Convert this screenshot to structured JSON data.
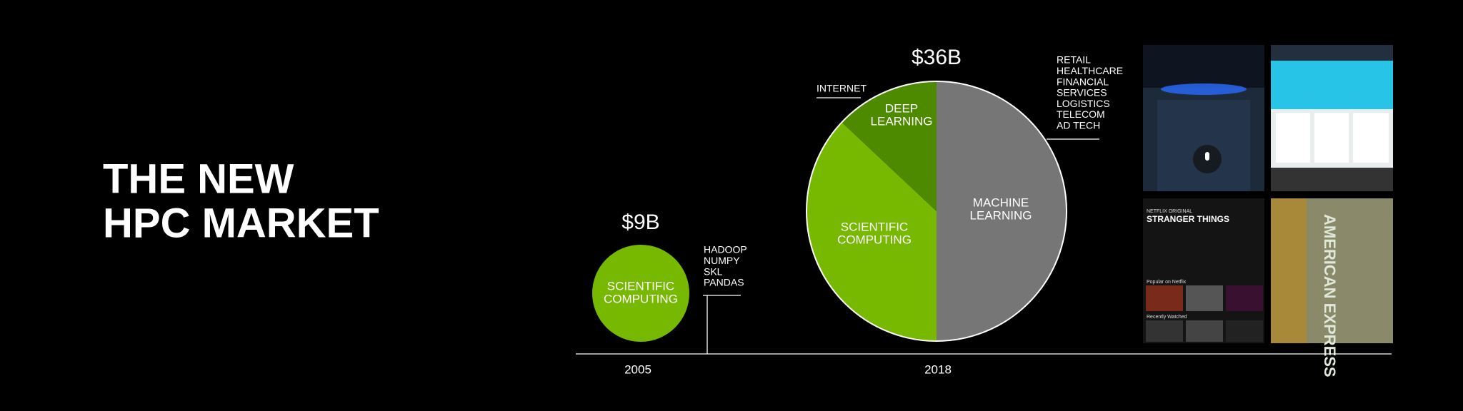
{
  "title_lines": [
    "THE NEW",
    "HPC MARKET"
  ],
  "chart_data": {
    "type": "market-pies",
    "markets": [
      {
        "year": "2005",
        "total": 9,
        "total_label": "$9B",
        "segments": [
          {
            "label_lines": [
              "SCIENTIFIC",
              "COMPUTING"
            ],
            "value": 100,
            "color": "#76b900"
          }
        ],
        "callouts": [
          {
            "lines": [
              "HADOOP",
              "NUMPY",
              "SKL",
              "PANDAS"
            ]
          }
        ]
      },
      {
        "year": "2018",
        "total": 36,
        "total_label": "$36B",
        "segments": [
          {
            "label_lines": [
              "MACHINE",
              "LEARNING"
            ],
            "value": 50,
            "color": "#767676"
          },
          {
            "label_lines": [
              "SCIENTIFIC",
              "COMPUTING"
            ],
            "value": 37,
            "color": "#76b900"
          },
          {
            "label_lines": [
              "DEEP",
              "LEARNING"
            ],
            "value": 13,
            "color": "#4e8a00"
          }
        ],
        "callouts": [
          {
            "lines": [
              "INTERNET"
            ]
          },
          {
            "lines": [
              "RETAIL",
              "HEALTHCARE",
              "FINANCIAL",
              "SERVICES",
              "LOGISTICS",
              "TELECOM",
              "AD TECH"
            ]
          }
        ]
      }
    ]
  },
  "screenshots": {
    "netflix": [
      "NETFLIX ORIGINAL",
      "STRANGER THINGS",
      "Popular on Netflix",
      "Recently Watched"
    ],
    "card": "AMERICAN EXPRESS"
  }
}
